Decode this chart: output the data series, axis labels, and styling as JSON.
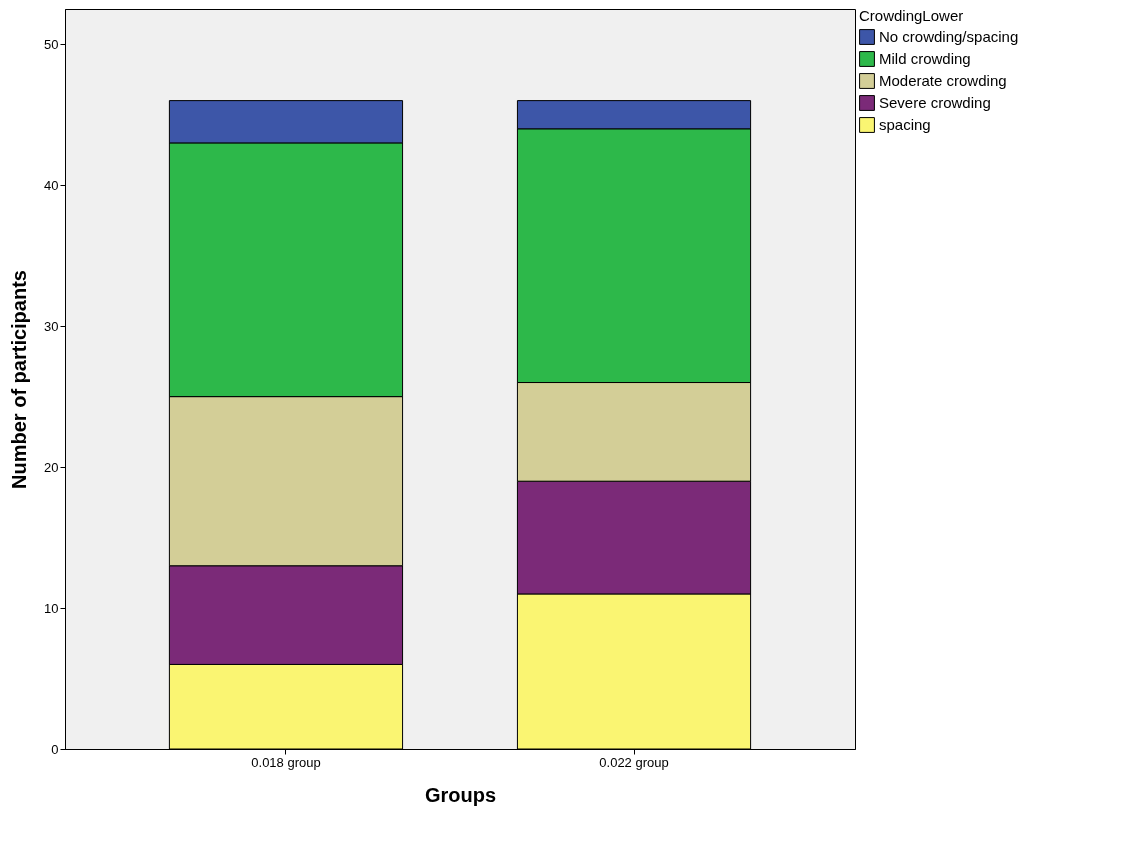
{
  "chart_data": {
    "type": "bar",
    "stacked": true,
    "xlabel": "Groups",
    "ylabel": "Number of participants",
    "legend_title": "CrowdingLower",
    "legend": "right",
    "grid": false,
    "categories": [
      "0.018 group",
      "0.022 group"
    ],
    "ylim": [
      0,
      52.5
    ],
    "yticks": [
      0,
      10,
      20,
      30,
      40,
      50
    ],
    "series": [
      {
        "name": "spacing",
        "color": "#faf572",
        "values": [
          6,
          11
        ]
      },
      {
        "name": "Severe crowding",
        "color": "#7b2a78",
        "values": [
          7,
          8
        ]
      },
      {
        "name": "Moderate crowding",
        "color": "#d3ce97",
        "values": [
          12,
          7
        ]
      },
      {
        "name": "Mild crowding",
        "color": "#2db84a",
        "values": [
          18,
          18
        ]
      },
      {
        "name": "No crowding/spacing",
        "color": "#3d56a8",
        "values": [
          3,
          2
        ]
      }
    ]
  }
}
